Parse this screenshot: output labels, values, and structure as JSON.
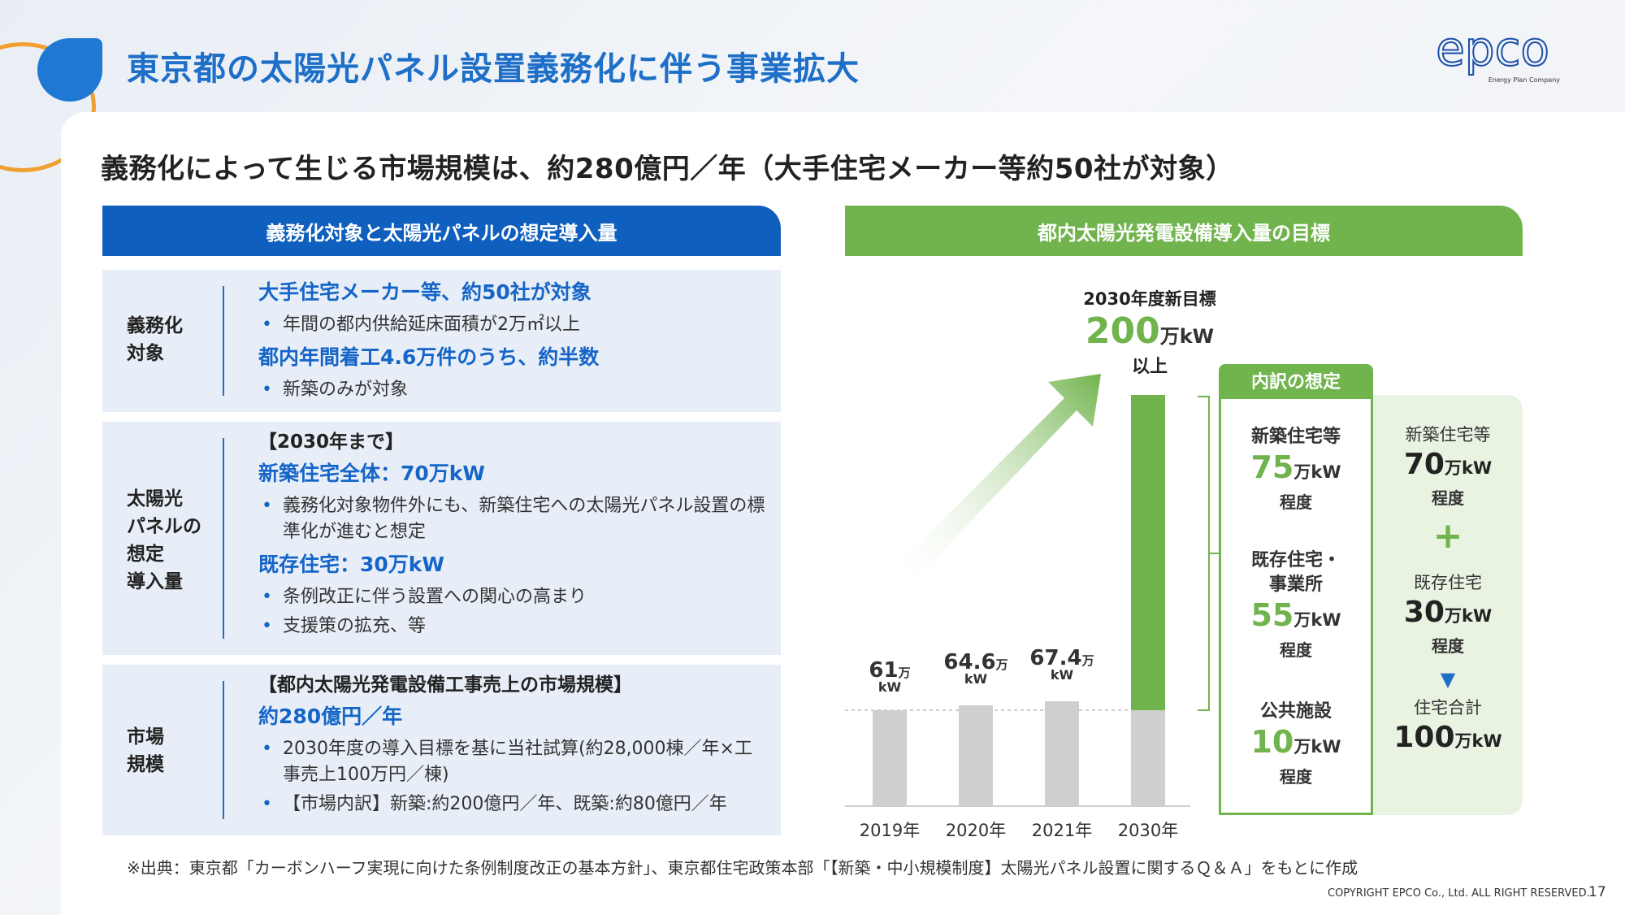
{
  "header": {
    "title": "東京都の太陽光パネル設置義務化に伴う事業拡大",
    "logo_text": "epco",
    "logo_sub": "Energy Plan Company"
  },
  "subtitle": "義務化によって生じる市場規模は、約280億円／年（大手住宅メーカー等約50社が対象）",
  "left": {
    "header": "義務化対象と太陽光パネルの想定導入量",
    "box1": {
      "label": "義務化\n対象",
      "line1": "大手住宅メーカー等、約50社が対象",
      "bullet1": "年間の都内供給延床面積が2万㎡以上",
      "line2": "都内年間着工4.6万件のうち、約半数",
      "bullet2": "新築のみが対象"
    },
    "box2": {
      "label": "太陽光\nパネルの\n想定\n導入量",
      "line0": "【2030年まで】",
      "line1": "新築住宅全体：70万kW",
      "bullet1": "義務化対象物件外にも、新築住宅への太陽光パネル設置の標準化が進むと想定",
      "line2": "既存住宅：30万kW",
      "bullet2": "条例改正に伴う設置への関心の高まり",
      "bullet3": "支援策の拡充、等"
    },
    "box3": {
      "label": "市場\n規模",
      "line0": "【都内太陽光発電設備工事売上の市場規模】",
      "line1": "約280億円／年",
      "bullet1": "2030年度の導入目標を基に当社試算(約28,000棟／年×工事売上100万円／棟)",
      "bullet2": "【市場内訳】新築:約200億円／年、既築:約80億円／年"
    }
  },
  "right": {
    "header": "都内太陽光発電設備導入量の目標",
    "target": {
      "label": "2030年度新目標",
      "value": "200",
      "unit": "万kW",
      "suffix": "以上"
    },
    "breakdown": {
      "header": "内訳の想定",
      "items": [
        {
          "title": "新築住宅等",
          "value": "75",
          "unit": "万kW",
          "note": "程度"
        },
        {
          "title": "既存住宅・\n事業所",
          "value": "55",
          "unit": "万kW",
          "note": "程度"
        },
        {
          "title": "公共施設",
          "value": "10",
          "unit": "万kW",
          "note": "程度"
        }
      ]
    },
    "housing": {
      "items": [
        {
          "title": "新築住宅等",
          "value": "70",
          "unit": "万kW",
          "note": "程度"
        },
        {
          "title": "既存住宅",
          "value": "30",
          "unit": "万kW",
          "note": "程度"
        },
        {
          "title": "住宅合計",
          "value": "100",
          "unit": "万kW"
        }
      ],
      "plus": "+",
      "arrow": "▼"
    }
  },
  "chart_data": {
    "type": "bar",
    "categories": [
      "2019年",
      "2020年",
      "2021年",
      "2030年"
    ],
    "values": [
      61,
      64.6,
      67.4,
      200
    ],
    "value_labels": [
      "61",
      "64.6",
      "67.4",
      ""
    ],
    "unit_top": "万",
    "unit_bottom": "kW",
    "colors": {
      "gray": "#cfcfcf",
      "green": "#71b44d"
    }
  },
  "footer": {
    "source": "※出典：東京都「カーボンハーフ実現に向けた条例制度改正の基本方針」、東京都住宅政策本部「【新築・中小規模制度】太陽光パネル設置に関するＱ＆Ａ」をもとに作成",
    "copyright": "COPYRIGHT EPCO Co., Ltd. ALL RIGHT RESERVED.",
    "page": "17"
  }
}
